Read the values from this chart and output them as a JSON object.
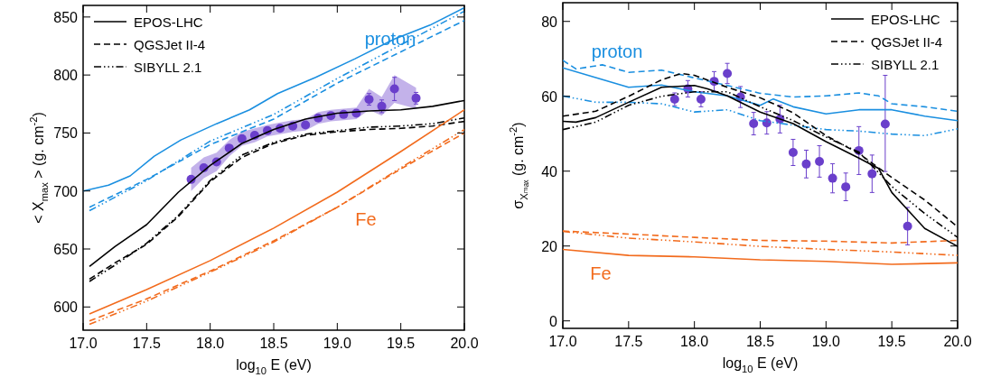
{
  "chart_data": [
    {
      "type": "line",
      "xlabel": "log$_{10}$ E (eV)",
      "ylabel": "< X$_{max}$ > (g. cm$^{-2}$)",
      "xlim": [
        17,
        20
      ],
      "ylim": [
        580,
        860
      ],
      "xticks": [
        {
          "value": 17,
          "label": "17.0"
        },
        {
          "value": 17.5,
          "label": "17.5"
        },
        {
          "value": 18,
          "label": "18.0"
        },
        {
          "value": 18.5,
          "label": "18.5"
        },
        {
          "value": 19,
          "label": "19.0"
        },
        {
          "value": 19.5,
          "label": "19.5"
        },
        {
          "value": 20,
          "label": "20.0"
        }
      ],
      "yticks": [
        600,
        650,
        700,
        750,
        800,
        850
      ],
      "legend": "top left",
      "grid": false,
      "annotations": [
        "proton",
        "Fe"
      ],
      "series": [
        {
          "color": "#1a8fe0",
          "line_style": "solid",
          "x": [
            17,
            17.2,
            17.37,
            17.56,
            17.77,
            18.05,
            18.31,
            18.53,
            18.83,
            19.14,
            19.45,
            19.73,
            20
          ],
          "values": [
            700,
            705,
            713,
            730,
            744,
            758,
            770,
            784,
            798,
            814,
            831,
            843,
            858
          ]
        },
        {
          "color": "#1a8fe0",
          "line_style": "dashed",
          "x": [
            17.05,
            17.5,
            18,
            18.5,
            19,
            19.5,
            20
          ],
          "values": [
            686,
            710,
            740,
            762,
            793,
            820,
            847
          ]
        },
        {
          "color": "#1a8fe0",
          "line_style": "dotted",
          "x": [
            17.05,
            17.5,
            18,
            18.5,
            19,
            19.5,
            20
          ],
          "values": [
            683,
            709,
            743,
            766,
            797,
            826,
            855
          ]
        },
        {
          "name": "EPOS-LHC",
          "color": "#000000",
          "line_style": "solid",
          "x": [
            17.05,
            17.25,
            17.5,
            17.75,
            18,
            18.25,
            18.5,
            18.75,
            19,
            19.25,
            19.5,
            19.75,
            20
          ],
          "values": [
            635,
            652,
            671,
            699,
            722,
            741,
            753,
            762,
            767,
            769,
            770,
            773,
            778
          ]
        },
        {
          "name": "QGSJet II-4",
          "color": "#000000",
          "line_style": "dashed",
          "x": [
            17.05,
            17.25,
            17.5,
            17.75,
            18,
            18.25,
            18.5,
            18.75,
            19,
            19.25,
            19.5,
            19.75,
            20
          ],
          "values": [
            624,
            638,
            654,
            678,
            708,
            729,
            741,
            748,
            751,
            753,
            754,
            756,
            760
          ]
        },
        {
          "name": "SIBYLL 2.1",
          "color": "#000000",
          "line_style": "dotted",
          "x": [
            17.05,
            17.25,
            17.5,
            17.75,
            18,
            18.25,
            18.5,
            18.75,
            19,
            19.25,
            19.5,
            19.75,
            20
          ],
          "values": [
            622,
            636,
            655,
            679,
            709,
            731,
            742,
            749,
            752,
            755,
            756,
            758,
            763
          ]
        },
        {
          "color": "#f26b1d",
          "line_style": "solid",
          "x": [
            17.05,
            17.5,
            18,
            18.5,
            19,
            19.5,
            20
          ],
          "values": [
            594,
            615,
            640,
            668,
            699,
            734,
            770
          ]
        },
        {
          "color": "#f26b1d",
          "line_style": "dashed",
          "x": [
            17.05,
            17.5,
            18,
            18.5,
            19,
            19.5,
            20
          ],
          "values": [
            588,
            607,
            631,
            657,
            686,
            719,
            750
          ]
        },
        {
          "color": "#f26b1d",
          "line_style": "dotted",
          "x": [
            17.05,
            17.5,
            18,
            18.5,
            19,
            19.5,
            20
          ],
          "values": [
            585,
            605,
            630,
            656,
            686,
            720,
            753
          ]
        },
        {
          "type": "scatter",
          "color": "#6a3fcb",
          "marker": "circle",
          "x": [
            17.85,
            17.95,
            18.05,
            18.15,
            18.25,
            18.35,
            18.45,
            18.55,
            18.65,
            18.75,
            18.85,
            18.95,
            19.05,
            19.15,
            19.25,
            19.35,
            19.45,
            19.62
          ],
          "values": [
            710,
            720,
            725,
            737,
            745,
            748,
            752,
            754,
            756,
            757,
            763,
            765,
            766,
            767,
            779,
            773,
            788,
            780
          ],
          "errors": [
            null,
            null,
            null,
            null,
            null,
            null,
            null,
            null,
            null,
            null,
            null,
            null,
            null,
            null,
            5,
            5.5,
            10,
            5
          ],
          "lower": [
            700,
            711,
            717,
            730,
            739,
            742,
            747,
            749,
            751,
            752,
            758,
            760,
            761,
            762,
            770,
            765,
            776,
            771
          ],
          "upper": [
            720,
            729,
            733,
            744,
            751,
            754,
            757,
            759,
            761,
            762,
            768,
            770,
            771,
            772,
            788,
            781,
            800,
            789
          ]
        }
      ]
    },
    {
      "type": "line",
      "xlabel": "log$_{10}$ E (eV)",
      "ylabel": "σ$_{Xₘₐₓ}$ (g. cm$^{-2}$)",
      "xlim": [
        17,
        20
      ],
      "ylim": [
        -2,
        85
      ],
      "xticks": [
        {
          "value": 17,
          "label": "17.0"
        },
        {
          "value": 17.5,
          "label": "17.5"
        },
        {
          "value": 18,
          "label": "18.0"
        },
        {
          "value": 18.5,
          "label": "18.5"
        },
        {
          "value": 19,
          "label": "19.0"
        },
        {
          "value": 19.5,
          "label": "19.5"
        },
        {
          "value": 20,
          "label": "20.0"
        }
      ],
      "yticks": [
        0,
        20,
        40,
        60,
        80
      ],
      "legend": "top right",
      "grid": false,
      "annotations": [
        "proton",
        "Fe"
      ],
      "series": [
        {
          "color": "#1a8fe0",
          "line_style": "solid",
          "x": [
            17,
            17.25,
            17.5,
            17.75,
            18,
            18.25,
            18.5,
            18.6,
            18.75,
            19,
            19.25,
            19.5,
            19.75,
            20
          ],
          "values": [
            67.6,
            65,
            62.4,
            63,
            61.2,
            60.1,
            57.6,
            59.3,
            57.2,
            55.3,
            56.4,
            56.4,
            54.7,
            53.5
          ]
        },
        {
          "color": "#1a8fe0",
          "line_style": "dashed",
          "x": [
            17,
            17.1,
            17.3,
            17.5,
            17.75,
            18,
            18.25,
            18.5,
            18.75,
            19,
            19.25,
            19.4,
            19.5,
            19.75,
            20
          ],
          "values": [
            69.6,
            67.3,
            68.4,
            66.4,
            67,
            64.9,
            62.9,
            60.8,
            59.8,
            60.1,
            60.9,
            60.1,
            58,
            57.2,
            56
          ]
        },
        {
          "color": "#1a8fe0",
          "line_style": "dotted",
          "x": [
            17,
            17.25,
            17.5,
            17.75,
            18,
            18.25,
            18.5,
            18.75,
            19,
            19.25,
            19.5,
            19.75,
            20
          ],
          "values": [
            60.1,
            58.4,
            58.4,
            58,
            55.8,
            56.4,
            53.5,
            52.3,
            51.1,
            50.7,
            49.9,
            49.5,
            51.3
          ]
        },
        {
          "name": "EPOS-LHC",
          "color": "#000000",
          "line_style": "solid",
          "x": [
            17,
            17.1,
            17.25,
            17.5,
            17.75,
            18,
            18.1,
            18.25,
            18.5,
            18.75,
            19,
            19.25,
            19.4,
            19.5,
            19.75,
            20
          ],
          "values": [
            53.3,
            53.1,
            54.3,
            58.4,
            62.4,
            62.9,
            62,
            60.1,
            55.8,
            52.7,
            47.9,
            43.5,
            40.7,
            34.3,
            24.7,
            19.9
          ]
        },
        {
          "name": "QGSJet II-4",
          "color": "#000000",
          "line_style": "dashed",
          "x": [
            17,
            17.25,
            17.5,
            17.75,
            17.9,
            18,
            18.25,
            18.5,
            18.75,
            19,
            19.25,
            19.5,
            19.75,
            20
          ],
          "values": [
            54.7,
            56,
            60,
            64.4,
            66.1,
            65.6,
            62.4,
            59.6,
            55.6,
            49.5,
            44.7,
            38.3,
            32.3,
            25.1
          ]
        },
        {
          "name": "SIBYLL 2.1",
          "color": "#000000",
          "line_style": "dotted",
          "x": [
            17,
            17.25,
            17.5,
            17.75,
            18,
            18.25,
            18.5,
            18.75,
            19,
            19.25,
            19.5,
            19.75,
            20
          ],
          "values": [
            51.1,
            53.1,
            57.6,
            60,
            61.2,
            61.2,
            57.2,
            53.5,
            49.1,
            45.1,
            35.9,
            28.7,
            22.3
          ]
        },
        {
          "color": "#f26b1d",
          "line_style": "solid",
          "x": [
            17,
            17.5,
            18,
            18.5,
            19,
            19.5,
            20
          ],
          "values": [
            19.1,
            17.5,
            17.1,
            16.3,
            15.9,
            15.1,
            15.5
          ]
        },
        {
          "color": "#f26b1d",
          "line_style": "dashed",
          "x": [
            17,
            17.5,
            18,
            18.5,
            19,
            19.5,
            20
          ],
          "values": [
            24,
            23.2,
            22.3,
            21.5,
            21.3,
            20.8,
            21.5
          ]
        },
        {
          "color": "#f26b1d",
          "line_style": "dotted",
          "x": [
            17,
            17.5,
            18,
            18.5,
            19,
            19.5,
            20
          ],
          "values": [
            23.9,
            22.1,
            21.1,
            19.9,
            19.1,
            18.4,
            17.5
          ]
        },
        {
          "type": "scatter",
          "color": "#6a3fcb",
          "marker": "circle",
          "x": [
            17.85,
            17.95,
            18.05,
            18.15,
            18.25,
            18.35,
            18.45,
            18.55,
            18.65,
            18.75,
            18.85,
            18.95,
            19.05,
            19.15,
            19.25,
            19.35,
            19.45,
            19.62
          ],
          "values": [
            59.2,
            62,
            59.2,
            64,
            66.1,
            59.8,
            52.7,
            52.9,
            53.9,
            45,
            41.9,
            42.6,
            38.1,
            35.8,
            45.5,
            39.3,
            52.6,
            25.3
          ],
          "errors": [
            1.7,
            2.2,
            2,
            2.6,
            2.7,
            2.8,
            3,
            3,
            3.7,
            3.5,
            3.7,
            4.2,
            3.9,
            3.7,
            6.4,
            5,
            [
              39.9,
              65.6
            ],
            [
              20.3,
              30.3
            ]
          ]
        }
      ]
    }
  ]
}
